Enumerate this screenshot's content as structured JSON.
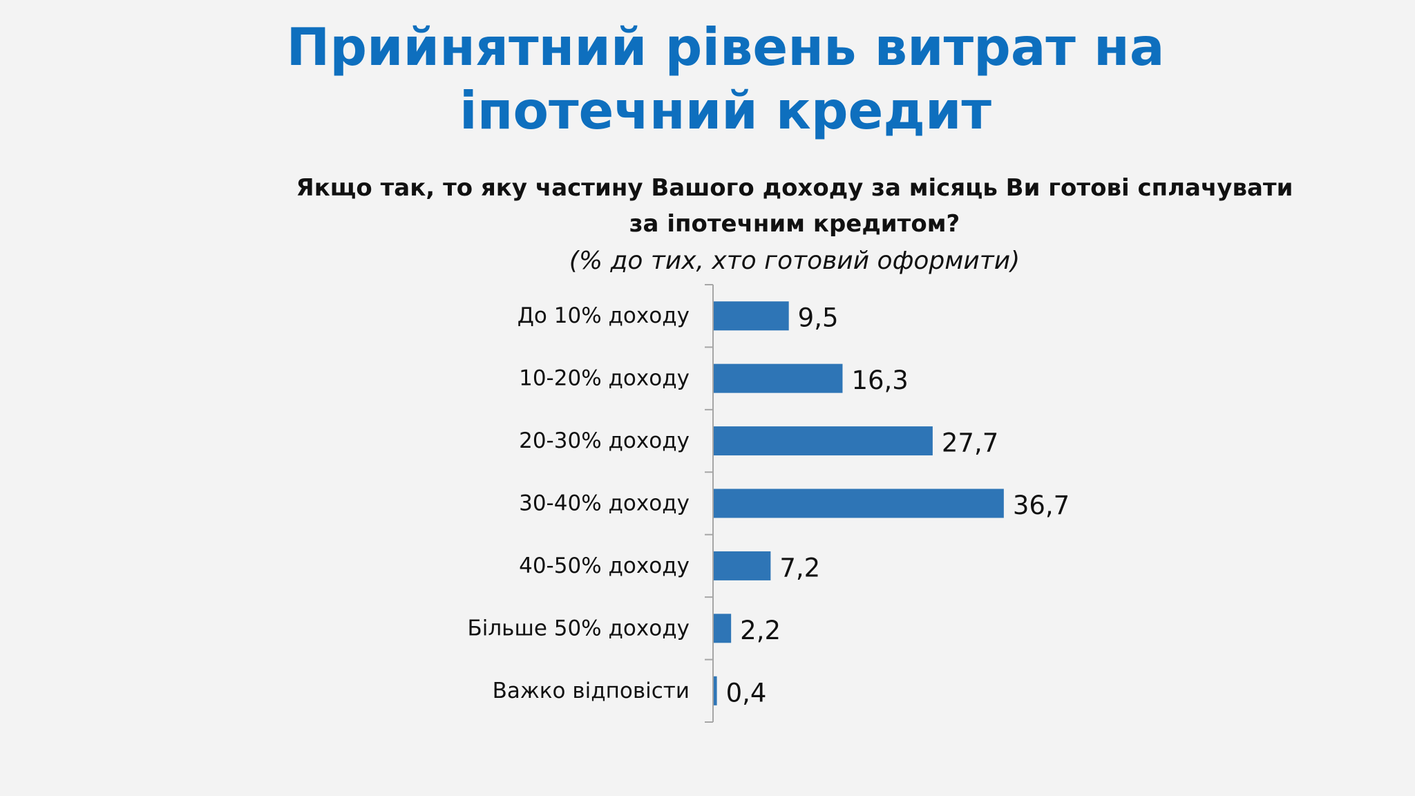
{
  "title": "Прийнятний рівень витрат на іпотечний кредит",
  "question": "Якщо так, то яку частину Вашого доходу за місяць Ви готові сплачувати за іпотечним кредитом?",
  "subtitle": "(% до тих, хто готовий оформити)",
  "colors": {
    "title": "#0e6fbe",
    "bar": "#2e75b6",
    "axis": "#a6a6a6",
    "background": "#f3f3f3"
  },
  "chart_data": {
    "type": "bar",
    "orientation": "horizontal",
    "categories": [
      "До 10% доходу",
      "10-20% доходу",
      "20-30% доходу",
      "30-40% доходу",
      "40-50% доходу",
      "Більше 50% доходу",
      "Важко відповісти"
    ],
    "values": [
      9.5,
      16.3,
      27.7,
      36.7,
      7.2,
      2.2,
      0.4
    ],
    "value_labels": [
      "9,5",
      "16,3",
      "27,7",
      "36,7",
      "7,2",
      "2,2",
      "0,4"
    ],
    "xlim": [
      0,
      40
    ],
    "grid": false,
    "legend": "none"
  }
}
